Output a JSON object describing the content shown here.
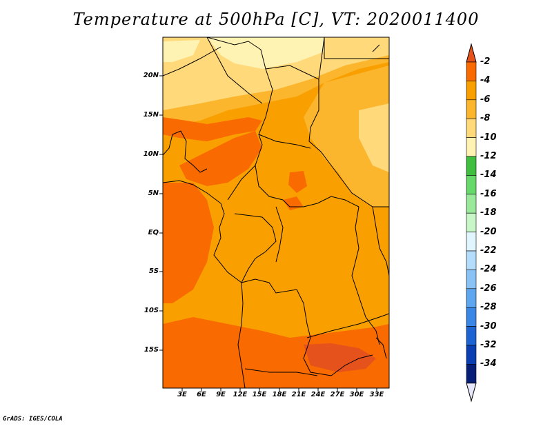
{
  "title": "Temperature at 500hPa [C], VT: 2020011400",
  "credit": "GrADS: IGES/COLA",
  "lat_labels": [
    "20N",
    "15N",
    "10N",
    "5N",
    "EQ",
    "5S",
    "10S",
    "15S"
  ],
  "lon_labels": [
    "3E",
    "6E",
    "9E",
    "12E",
    "15E",
    "18E",
    "21E",
    "24E",
    "27E",
    "30E",
    "33E"
  ],
  "colorbar": {
    "labels": [
      "-2",
      "-4",
      "-6",
      "-8",
      "-10",
      "-12",
      "-14",
      "-16",
      "-18",
      "-20",
      "-22",
      "-24",
      "-26",
      "-28",
      "-30",
      "-32",
      "-34"
    ],
    "colors": [
      "#e5521b",
      "#f96a00",
      "#f9a000",
      "#fbb62d",
      "#ffd97a",
      "#fff3b4",
      "#3fbe3f",
      "#66d96a",
      "#9ae89a",
      "#c9f6c9",
      "#e1f5fe",
      "#b4dcfb",
      "#8ac2f5",
      "#5ea6f0",
      "#3a86e6",
      "#1d63d2",
      "#0a3eb1",
      "#071e78",
      "#e6e6fa"
    ],
    "top_arrow_color": "#e5521b",
    "bottom_arrow_color": "#e6e6fa"
  },
  "palette": {
    "c_neg10": "#fff3b4",
    "c_neg8": "#ffd97a",
    "c_neg6": "#fbb62d",
    "c_neg4": "#f9a000",
    "c_neg2": "#f96a00"
  }
}
